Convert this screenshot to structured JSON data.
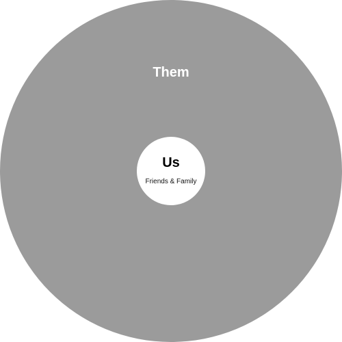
{
  "outer": {
    "label": "Them",
    "color": "#9b9b9b",
    "text_color": "#ffffff"
  },
  "inner": {
    "title": "Us",
    "subtitle": "Friends & Family",
    "color": "#ffffff",
    "text_color": "#000000"
  }
}
